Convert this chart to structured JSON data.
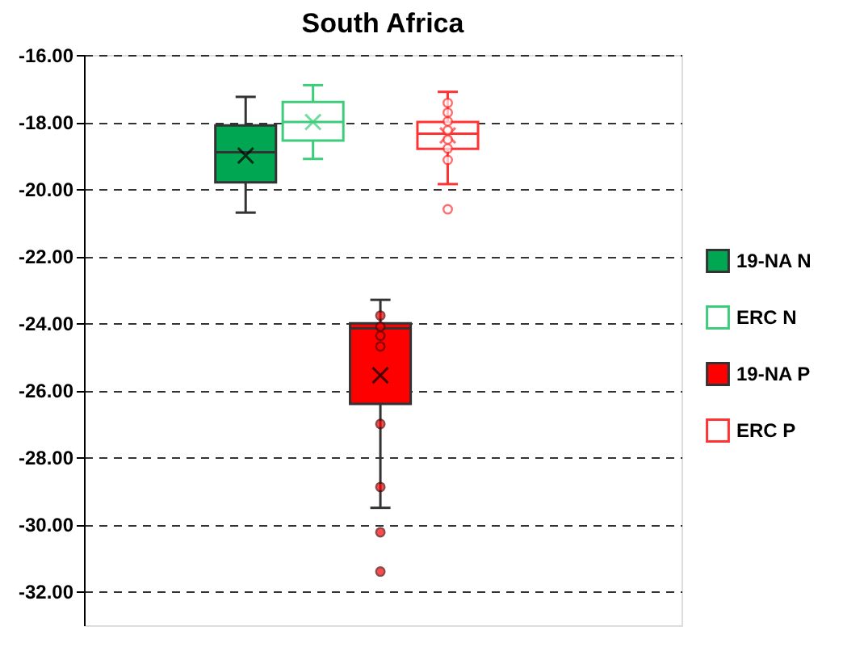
{
  "chart_data": {
    "type": "box",
    "title": "South Africa",
    "categories": [
      null
    ],
    "series": [
      {
        "name": "19-NA N",
        "color": "#00a651",
        "boxes": [
          {
            "low": -20.7,
            "q1": -19.8,
            "median": -18.9,
            "q3": -18.1,
            "high": -17.25,
            "mean": -19.0
          }
        ]
      },
      {
        "name": "ERC N",
        "color": "#3dcc7a",
        "colors": [
          "#ffffff"
        ],
        "boxes": [
          {
            "low": -19.1,
            "q1": -18.55,
            "median": -18.0,
            "q3": -17.4,
            "high": -16.9,
            "mean": -18.0
          }
        ]
      },
      {
        "name": "19-NA P",
        "color": "#ff0000",
        "boxes": [
          {
            "low": -29.5,
            "q1": -26.4,
            "median": -24.15,
            "q3": -24.0,
            "high": -23.3,
            "mean": -25.55,
            "outliers": [
              -23.77,
              -24.1,
              -24.37,
              -24.69,
              -27.0,
              -28.88,
              -30.23,
              -31.4
            ]
          }
        ]
      },
      {
        "name": "ERC P",
        "color": "#ff3333",
        "colors": [
          "#ffffff"
        ],
        "boxes": [
          {
            "low": -19.85,
            "q1": -18.8,
            "median": -18.35,
            "q3": -18.0,
            "high": -17.1,
            "mean": -18.4,
            "outliers": [
              -17.43,
              -17.72,
              -17.98,
              -18.25,
              -18.52,
              -18.79,
              -19.13,
              -20.6
            ]
          }
        ]
      }
    ],
    "ylim": [
      -33,
      -16
    ],
    "yticks": [
      {
        "value": -16,
        "label": "-16.00"
      },
      {
        "value": -18,
        "label": "-18.00"
      },
      {
        "value": -20,
        "label": "-20.00"
      },
      {
        "value": -22,
        "label": "-22.00"
      },
      {
        "value": -24,
        "label": "-24.00"
      },
      {
        "value": -26,
        "label": "-26.00"
      },
      {
        "value": -28,
        "label": "-28.00"
      },
      {
        "value": -30,
        "label": "-30.00"
      },
      {
        "value": -32,
        "label": "-32.00"
      }
    ],
    "grid": "y",
    "legend": "right",
    "marker": "circle",
    "tick_labels": "y"
  }
}
